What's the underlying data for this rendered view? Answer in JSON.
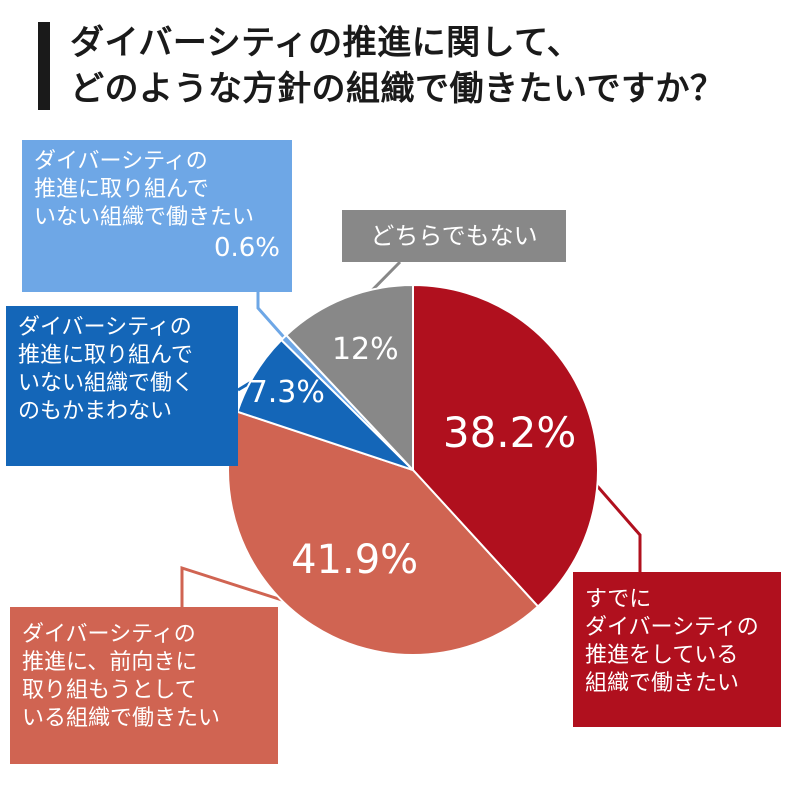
{
  "title": {
    "line1": "ダイバーシティの推進に関して、",
    "line2": "どのような方針の組織で働きたいですか？"
  },
  "chart_data": {
    "type": "pie",
    "title": "ダイバーシティの推進に関して、どのような方針の組織で働きたいですか？",
    "slices": [
      {
        "label_lines": [
          "すでに",
          "ダイバーシティの",
          "推進をしている",
          "組織で働きたい"
        ],
        "value": 38.2,
        "display": "38.2%",
        "color": "#b0101e"
      },
      {
        "label_lines": [
          "ダイバーシティの",
          "推進に、前向きに",
          "取り組もうとして",
          "いる組織で働きたい"
        ],
        "value": 41.9,
        "display": "41.9%",
        "color": "#d06452"
      },
      {
        "label_lines": [
          "ダイバーシティの",
          "推進に取り組んで",
          "いない組織で働く",
          "のもかまわない"
        ],
        "value": 7.3,
        "display": "7.3%",
        "color": "#1466b8"
      },
      {
        "label_lines": [
          "ダイバーシティの",
          "推進に取り組んで",
          "いない組織で働きたい"
        ],
        "value": 0.6,
        "display": "0.6%",
        "color": "#6ea7e6"
      },
      {
        "label_lines": [
          "どちらでもない"
        ],
        "value": 12,
        "display": "12%",
        "color": "#888888"
      }
    ],
    "start": "12 o'clock",
    "direction": "clockwise"
  }
}
